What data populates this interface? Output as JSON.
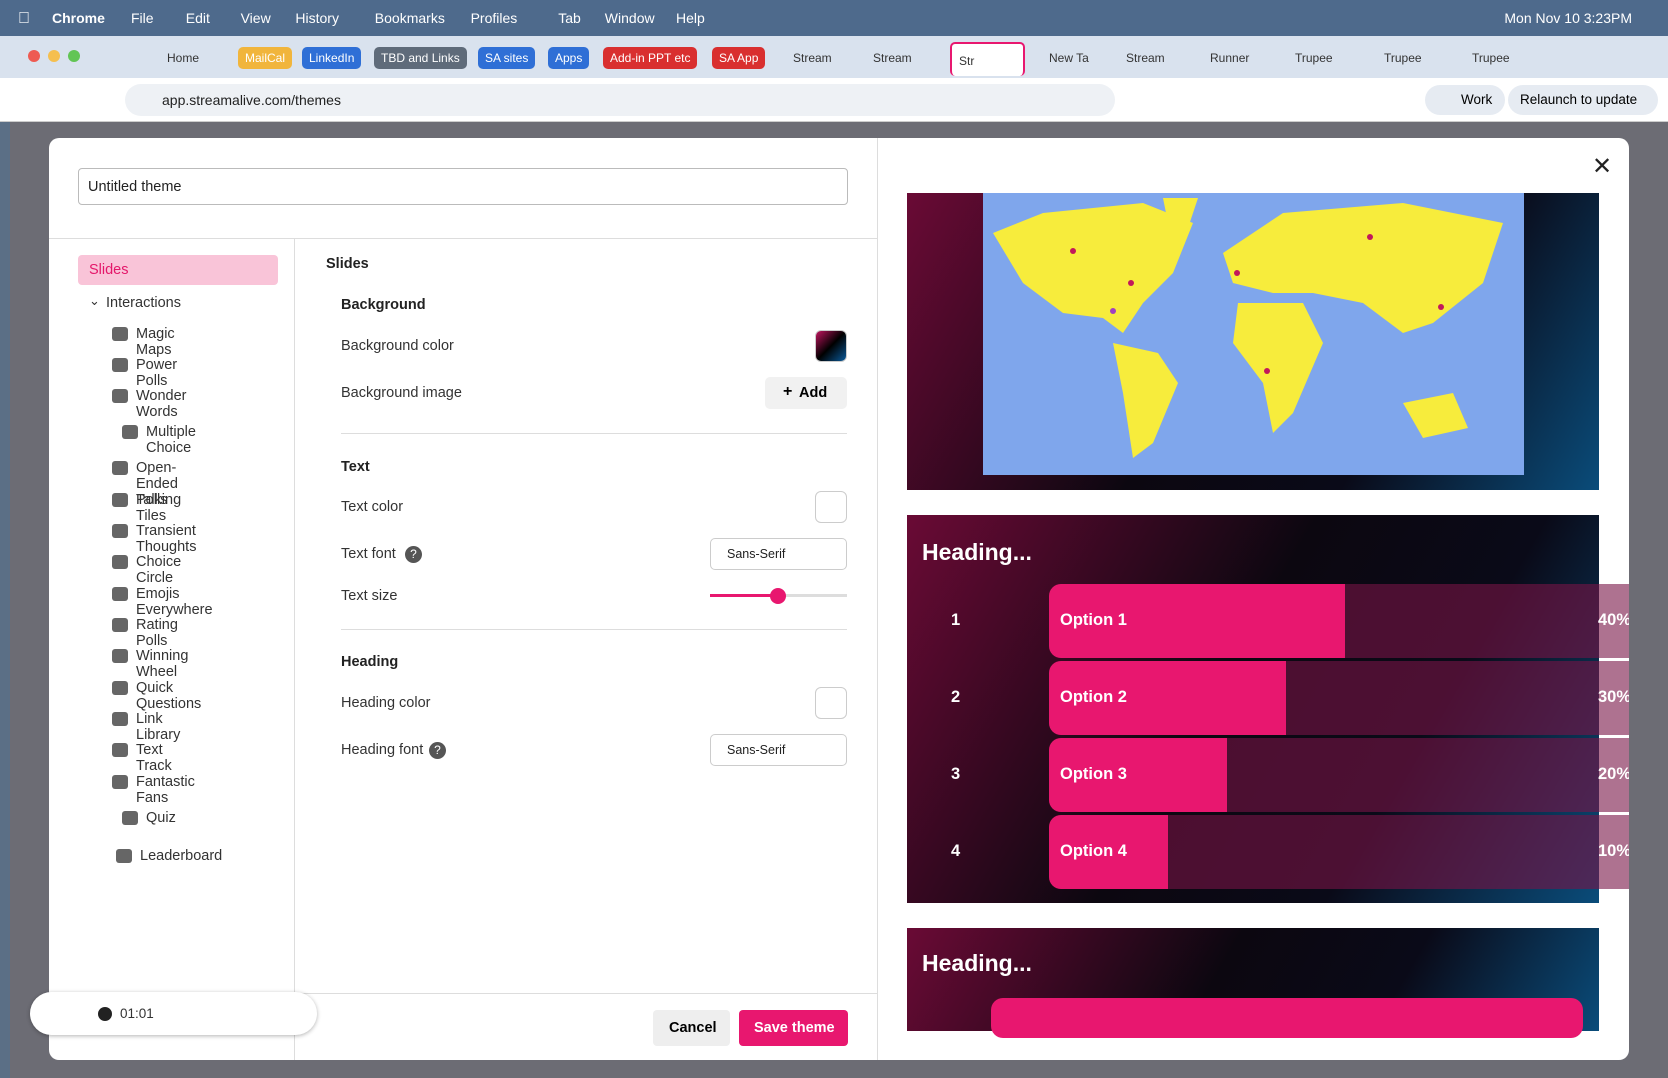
{
  "menubar": {
    "app": "Chrome",
    "menus": [
      "File",
      "Edit",
      "View",
      "History",
      "Bookmarks",
      "Profiles",
      "Tab",
      "Window",
      "Help"
    ],
    "clock": "Mon Nov 10  3:23PM"
  },
  "tabs": [
    "Home",
    "MailCal",
    "LinkedIn",
    "TBD and Links",
    "SA sites",
    "Apps",
    "Add-in PPT etc",
    "SA App",
    "Stream",
    "Stream",
    "Str",
    "New Ta",
    "Stream",
    "Runner",
    "Trupee",
    "Trupee",
    "Trupee"
  ],
  "address": "app.streamalive.com/themes",
  "toolbar": {
    "profile": "Work",
    "relaunch": "Relaunch to update"
  },
  "dialog": {
    "theme_name": "Untitled theme",
    "nav": {
      "active": "Slides",
      "group": "Interactions",
      "items": [
        "Magic Maps",
        "Power Polls",
        "Wonder Words",
        "Multiple Choice",
        "Open-Ended Polls",
        "Talking Tiles",
        "Transient Thoughts",
        "Choice Circle",
        "Emojis Everywhere",
        "Rating Polls",
        "Winning Wheel",
        "Quick Questions",
        "Link Library",
        "Text Track",
        "Fantastic Fans",
        "Quiz",
        "Leaderboard"
      ]
    },
    "settings": {
      "title": "Slides",
      "background": {
        "heading": "Background",
        "color": "Background color",
        "image": "Background image",
        "add": "Add"
      },
      "text": {
        "heading": "Text",
        "color": "Text color",
        "font": "Text font",
        "font_value": "Sans-Serif",
        "size": "Text size"
      },
      "heading": {
        "heading": "Heading",
        "color": "Heading color",
        "font": "Heading font",
        "font_value": "Sans-Serif"
      }
    },
    "cancel": "Cancel",
    "save": "Save theme"
  },
  "preview": {
    "heading": "Heading...",
    "options": [
      {
        "number": "1",
        "label": "Option 1",
        "percent": "40%"
      },
      {
        "number": "2",
        "label": "Option 2",
        "percent": "30%"
      },
      {
        "number": "3",
        "label": "Option 3",
        "percent": "20%"
      },
      {
        "number": "4",
        "label": "Option 4",
        "percent": "10%"
      }
    ],
    "second_heading": "Heading..."
  },
  "recorder": {
    "time": "01:01"
  }
}
